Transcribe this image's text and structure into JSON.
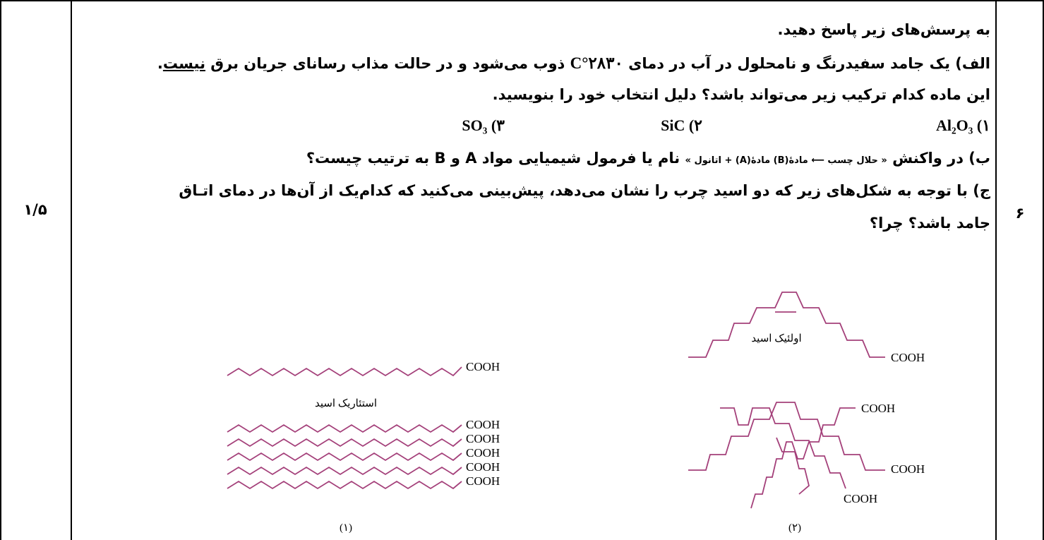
{
  "question": {
    "number": "۶",
    "score": "۱/۵",
    "intro": "به پرسش‌های زیر پاسخ دهید.",
    "part_a_line1_pre": "الف) یک جامد سفیدرنگ و نامحلول در آب در دمای ",
    "part_a_temp": "۲۸۳۰°C",
    "part_a_line1_post": " ذوب می‌شود و در حالت مذاب رسانای جریان برق ",
    "part_a_neg": "نیست",
    "part_a_line2": "این ماده کدام ترکیب زیر می‌تواند باشد؟ دلیل انتخاب خود را بنویسید.",
    "options": [
      "Al₂O₃ (۱",
      "SiC (۲",
      "SO₃ (۳"
    ],
    "part_b_pre": "ب) در واکنش ",
    "part_b_reaction": "« حلال چسب  ⟵ مادهٔ(B)  مادهٔ(A) + اتانول »",
    "part_b_post": " نام یا فرمول شیمیایی مواد A و B به ترتیب چیست؟",
    "part_c_line1": "ج) با توجه به شکل‌های زیر که دو اسید چرب را نشان می‌دهد، پیش‌بینی می‌کنید که کدام‌یک از آن‌ها در دمای اتـاق",
    "part_c_line2": "جامد باشد؟ چرا؟"
  },
  "figure": {
    "stearic_label": "استئاریک اسید",
    "oleic_label": "اولئیک اسید",
    "cooh": "COOH",
    "caption_1": "(۱)",
    "caption_2": "(۲)",
    "line_color": "#a4407a"
  }
}
